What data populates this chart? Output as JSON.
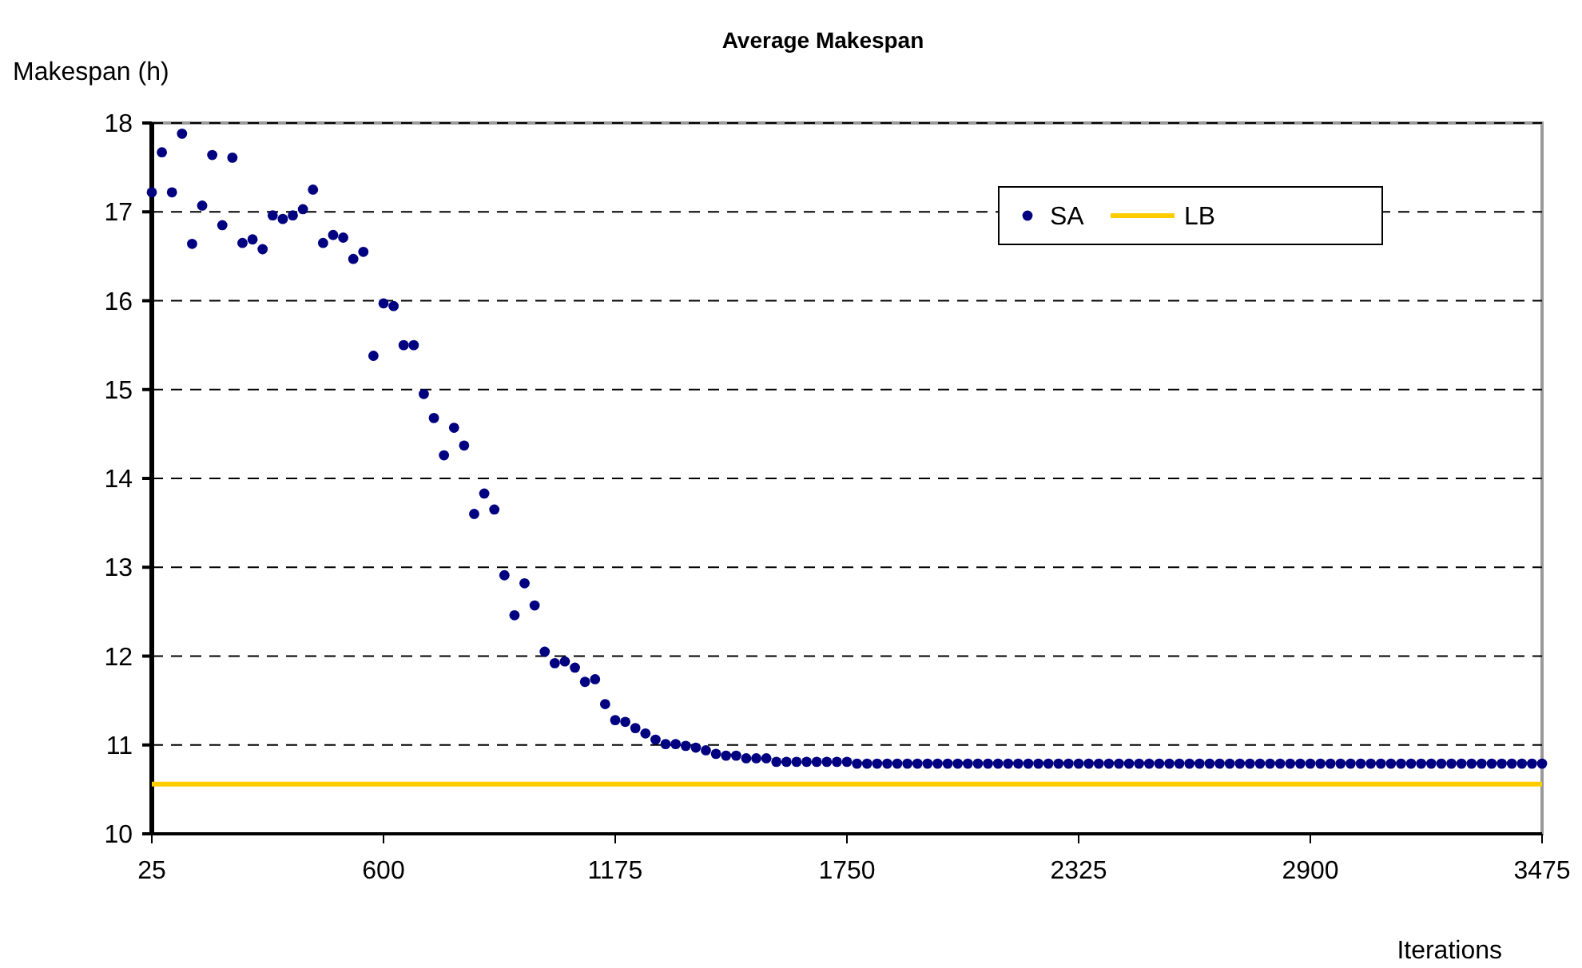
{
  "chart_data": {
    "type": "scatter",
    "title": "Average Makespan",
    "xlabel": "Iterations",
    "ylabel": "Makespan (h)",
    "xlim": [
      25,
      3475
    ],
    "xticks": [
      25,
      600,
      1175,
      1750,
      2325,
      2900,
      3475
    ],
    "ylim": [
      10,
      18
    ],
    "yticks": [
      10,
      11,
      12,
      13,
      14,
      15,
      16,
      17,
      18
    ],
    "grid": "y",
    "legend": "top right",
    "series": [
      {
        "name": "SA",
        "color": "#000080",
        "marker": "circle",
        "x": [
          25,
          50,
          75,
          100,
          125,
          150,
          175,
          200,
          225,
          250,
          275,
          300,
          325,
          350,
          375,
          400,
          425,
          450,
          475,
          500,
          525,
          550,
          575,
          600,
          625,
          650,
          675,
          700,
          725,
          750,
          775,
          800,
          825,
          850,
          875,
          900,
          925,
          950,
          975,
          1000,
          1025,
          1050,
          1075,
          1100,
          1125,
          1150,
          1175,
          1200,
          1225,
          1250,
          1275,
          1300,
          1325,
          1350,
          1375,
          1400,
          1425,
          1450,
          1475,
          1500,
          1525,
          1550,
          1575,
          1600,
          1625,
          1650,
          1675,
          1700,
          1725,
          1750,
          1775,
          1800,
          1825,
          1850,
          1875,
          1900,
          1925,
          1950,
          1975,
          2000,
          2025,
          2050,
          2075,
          2100,
          2125,
          2150,
          2175,
          2200,
          2225,
          2250,
          2275,
          2300,
          2325,
          2350,
          2375,
          2400,
          2425,
          2450,
          2475,
          2500,
          2525,
          2550,
          2575,
          2600,
          2625,
          2650,
          2675,
          2700,
          2725,
          2750,
          2775,
          2800,
          2825,
          2850,
          2875,
          2900,
          2925,
          2950,
          2975,
          3000,
          3025,
          3050,
          3075,
          3100,
          3125,
          3150,
          3175,
          3200,
          3225,
          3250,
          3275,
          3300,
          3325,
          3350,
          3375,
          3400,
          3425,
          3450,
          3475
        ],
        "values": [
          17.22,
          17.67,
          17.22,
          17.88,
          16.64,
          17.07,
          17.64,
          16.85,
          17.61,
          16.65,
          16.69,
          16.58,
          16.96,
          16.92,
          16.96,
          17.03,
          17.25,
          16.65,
          16.74,
          16.71,
          16.47,
          16.55,
          15.38,
          15.97,
          15.94,
          15.5,
          15.5,
          14.95,
          14.68,
          14.26,
          14.57,
          14.37,
          13.6,
          13.83,
          13.65,
          12.91,
          12.46,
          12.82,
          12.57,
          12.05,
          11.92,
          11.94,
          11.87,
          11.71,
          11.74,
          11.46,
          11.28,
          11.26,
          11.19,
          11.13,
          11.06,
          11.01,
          11.01,
          10.99,
          10.97,
          10.94,
          10.9,
          10.88,
          10.88,
          10.85,
          10.85,
          10.85,
          10.81,
          10.81,
          10.81,
          10.81,
          10.81,
          10.81,
          10.81,
          10.81,
          10.79,
          10.79,
          10.79,
          10.79,
          10.79,
          10.79,
          10.79,
          10.79,
          10.79,
          10.79,
          10.79,
          10.79,
          10.79,
          10.79,
          10.79,
          10.79,
          10.79,
          10.79,
          10.79,
          10.79,
          10.79,
          10.79,
          10.79,
          10.79,
          10.79,
          10.79,
          10.79,
          10.79,
          10.79,
          10.79,
          10.79,
          10.79,
          10.79,
          10.79,
          10.79,
          10.79,
          10.79,
          10.79,
          10.79,
          10.79,
          10.79,
          10.79,
          10.79,
          10.79,
          10.79,
          10.79,
          10.79,
          10.79,
          10.79,
          10.79,
          10.79,
          10.79,
          10.79,
          10.79,
          10.79,
          10.79,
          10.79,
          10.79,
          10.79,
          10.79,
          10.79,
          10.79,
          10.79,
          10.79,
          10.79,
          10.79,
          10.79,
          10.79,
          10.79
        ]
      },
      {
        "name": "LB",
        "type": "line",
        "color": "#ffcc00",
        "marker": "none",
        "line_style": "solid",
        "x": [
          25,
          3475
        ],
        "values": [
          10.56,
          10.56
        ]
      }
    ]
  }
}
